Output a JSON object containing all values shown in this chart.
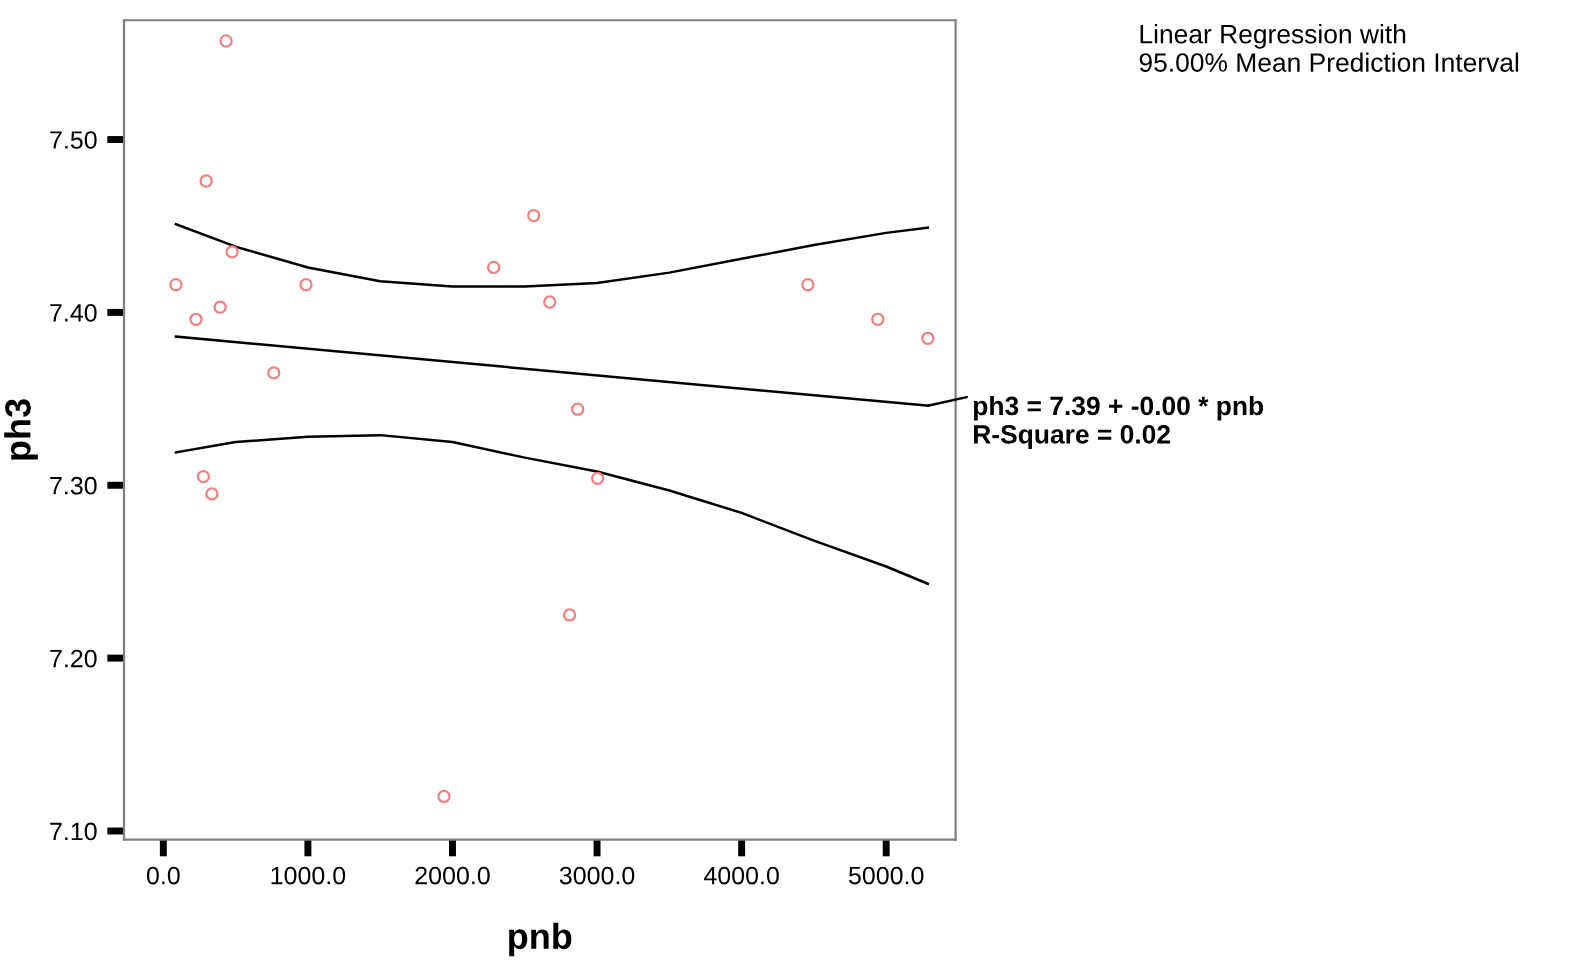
{
  "chart_data": {
    "type": "scatter",
    "xlabel": "pnb",
    "ylabel": "ph3",
    "xlim": [
      -272,
      5480
    ],
    "ylim": [
      7.095,
      7.569
    ],
    "xticks": [
      {
        "value": 0,
        "label": "0.0"
      },
      {
        "value": 1000,
        "label": "1000.0"
      },
      {
        "value": 2000,
        "label": "2000.0"
      },
      {
        "value": 3000,
        "label": "3000.0"
      },
      {
        "value": 4000,
        "label": "4000.0"
      },
      {
        "value": 5000,
        "label": "5000.0"
      }
    ],
    "yticks": [
      {
        "value": 7.1,
        "label": "7.10"
      },
      {
        "value": 7.2,
        "label": "7.20"
      },
      {
        "value": 7.3,
        "label": "7.30"
      },
      {
        "value": 7.4,
        "label": "7.40"
      },
      {
        "value": 7.5,
        "label": "7.50"
      }
    ],
    "grid": false,
    "legend": false,
    "series": [
      {
        "color": "#f08080",
        "marker": "circle",
        "x": [
          434,
          296,
          476,
          87,
          987,
          393,
          226,
          764,
          277,
          336,
          2562,
          2285,
          2673,
          2866,
          3004,
          4458,
          4942,
          5288,
          2810,
          1941
        ],
        "values": [
          7.557,
          7.476,
          7.435,
          7.416,
          7.416,
          7.403,
          7.396,
          7.365,
          7.305,
          7.295,
          7.456,
          7.426,
          7.406,
          7.344,
          7.304,
          7.416,
          7.396,
          7.385,
          7.225,
          7.12
        ]
      },
      {
        "type": "line",
        "color": "#000000",
        "marker": "none",
        "line_style": "solid",
        "x": [
          87,
          5288
        ],
        "values": [
          7.386,
          7.346
        ]
      },
      {
        "type": "line",
        "color": "#000000",
        "marker": "none",
        "line_style": "solid",
        "x": [
          87,
          500,
          1000,
          1500,
          2000,
          2500,
          3000,
          3500,
          4000,
          4500,
          5000,
          5288
        ],
        "values": [
          7.451,
          7.438,
          7.426,
          7.418,
          7.415,
          7.415,
          7.417,
          7.423,
          7.431,
          7.439,
          7.446,
          7.449
        ]
      },
      {
        "type": "line",
        "color": "#000000",
        "marker": "none",
        "line_style": "solid",
        "x": [
          87,
          500,
          1000,
          1500,
          2000,
          2500,
          3000,
          3500,
          4000,
          4500,
          5000,
          5288
        ],
        "values": [
          7.319,
          7.325,
          7.328,
          7.329,
          7.325,
          7.316,
          7.308,
          7.297,
          7.284,
          7.268,
          7.253,
          7.243
        ]
      }
    ],
    "annotations": [
      {
        "text": "ph3 = 7.39 + -0.00 * pnb\nR-Square = 0.02",
        "x": 5288,
        "y": 7.346
      },
      "Linear Regression with\n95.00% Mean Prediction Interval"
    ]
  }
}
